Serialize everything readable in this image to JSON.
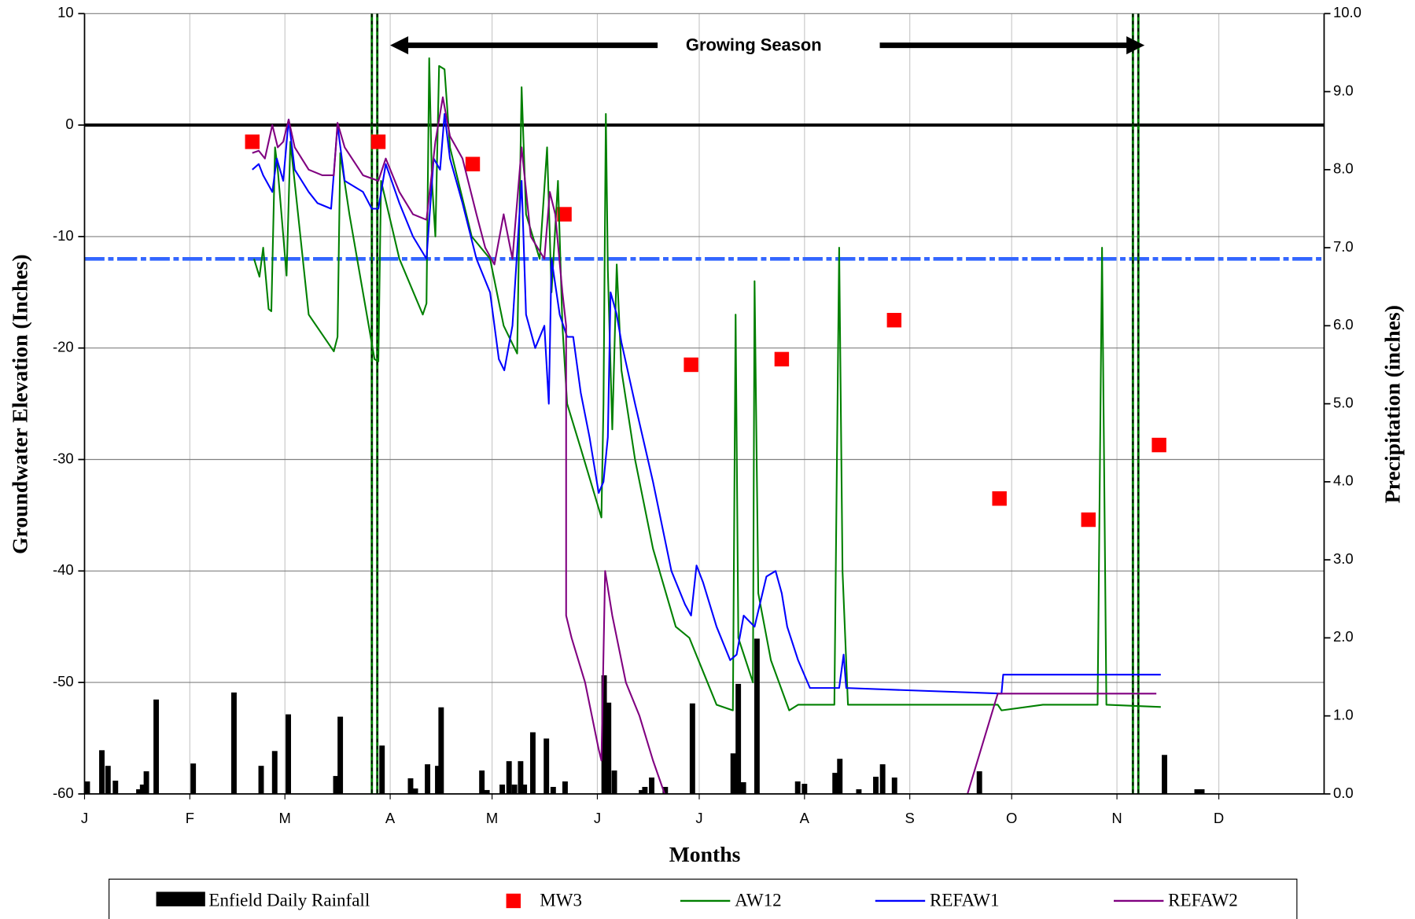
{
  "chart_data": {
    "type": "combo",
    "x_label": "Months",
    "y_label": "Groundwater Elevation (Inches)",
    "y2_label": "Precipitation (inches)",
    "annotation": "Growing Season",
    "xlim": [
      0,
      365
    ],
    "xticks": [
      {
        "value": 0,
        "label": "J"
      },
      {
        "value": 31,
        "label": "F"
      },
      {
        "value": 59,
        "label": "M"
      },
      {
        "value": 90,
        "label": "A"
      },
      {
        "value": 120,
        "label": "M"
      },
      {
        "value": 151,
        "label": "J"
      },
      {
        "value": 181,
        "label": "J"
      },
      {
        "value": 212,
        "label": "A"
      },
      {
        "value": 243,
        "label": "S"
      },
      {
        "value": 273,
        "label": "O"
      },
      {
        "value": 304,
        "label": "N"
      },
      {
        "value": 334,
        "label": "D"
      }
    ],
    "ylim": [
      -60,
      10
    ],
    "yticks": [
      -60,
      -50,
      -40,
      -30,
      -20,
      -10,
      0,
      10
    ],
    "y2lim": [
      0,
      10
    ],
    "y2ticks": [
      {
        "value": 0,
        "label": "0.0"
      },
      {
        "value": 1,
        "label": "1.0"
      },
      {
        "value": 2,
        "label": "2.0"
      },
      {
        "value": 3,
        "label": "3.0"
      },
      {
        "value": 4,
        "label": "4.0"
      },
      {
        "value": 5,
        "label": "5.0"
      },
      {
        "value": 6,
        "label": "6.0"
      },
      {
        "value": 7,
        "label": "7.0"
      },
      {
        "value": 8,
        "label": "8.0"
      },
      {
        "value": 9,
        "label": "9.0"
      },
      {
        "value": 10,
        "label": "10.0"
      }
    ],
    "grid": true,
    "hlines": [
      {
        "value": 0,
        "color": "#000000",
        "dashed": false
      },
      {
        "value": -12,
        "color": "#3366ff",
        "dashed": true
      }
    ],
    "growing_season": [
      85.4,
      309.5
    ],
    "series": [
      {
        "name": "Enfield Daily Rainfall",
        "type": "bar",
        "axis": "y2",
        "color": "#000000",
        "x": [
          0.8,
          5.1,
          6.9,
          9.1,
          16,
          17.1,
          18.2,
          21.1,
          32,
          44,
          52,
          56,
          60,
          74,
          75.3,
          87.6,
          96,
          97.4,
          101,
          104,
          105,
          117,
          118.5,
          123,
          125,
          126.6,
          128.4,
          129.5,
          132,
          136,
          138,
          141.5,
          153,
          154.3,
          156,
          164,
          165,
          167,
          171,
          179,
          191,
          192.5,
          194,
          198,
          210,
          212,
          221,
          222.4,
          228,
          233,
          235,
          238.5,
          263.5,
          318,
          327.6,
          329
        ],
        "values": [
          0.16,
          0.56,
          0.36,
          0.17,
          0.06,
          0.12,
          0.29,
          1.21,
          0.39,
          1.3,
          0.36,
          0.55,
          1.02,
          0.23,
          0.99,
          0.62,
          0.2,
          0.07,
          0.38,
          0.36,
          1.11,
          0.3,
          0.05,
          0.12,
          0.42,
          0.12,
          0.42,
          0.12,
          0.79,
          0.71,
          0.09,
          0.16,
          1.52,
          1.17,
          0.3,
          0.05,
          0.09,
          0.21,
          0.09,
          1.16,
          0.52,
          1.41,
          0.15,
          1.99,
          0.16,
          0.13,
          0.27,
          0.45,
          0.06,
          0.22,
          0.38,
          0.21,
          0.29,
          0.5,
          0.06,
          0.06
        ]
      },
      {
        "name": "MW3",
        "type": "scatter",
        "color": "#ff0000",
        "x": [
          49.4,
          86.5,
          114.3,
          141.3,
          178.6,
          205.3,
          238.4,
          269.4,
          295.6,
          316.4
        ],
        "values": [
          -1.5,
          -1.5,
          -3.5,
          -8,
          -21.5,
          -21,
          -17.5,
          -33.5,
          -35.4,
          -28.7
        ]
      },
      {
        "name": "AW12",
        "type": "line",
        "color": "#008000",
        "x": [
          49.9,
          51.5,
          52.6,
          54.2,
          55.0,
          56.1,
          56.9,
          59.5,
          60.6,
          66.0,
          73.4,
          74.5,
          75.3,
          78.0,
          85.4,
          86.5,
          87.3,
          92.7,
          99.6,
          100.7,
          101.5,
          102.3,
          103.3,
          104.4,
          106.0,
          107.6,
          114.0,
          119.4,
          123.4,
          127.4,
          128.7,
          130.0,
          134.0,
          136.2,
          137.5,
          139.4,
          140.7,
          142.1,
          146.1,
          152.2,
          152.8,
          153.5,
          154.1,
          155.4,
          156.7,
          158.1,
          162.1,
          167.4,
          174.1,
          178.1,
          182.1,
          186.1,
          190.9,
          191.7,
          192.5,
          196.8,
          197.3,
          198.4,
          202.1,
          207.5,
          210.1,
          220.8,
          222.2,
          223.2,
          224.8,
          239.5,
          255.5,
          268.9,
          270.0,
          282.2,
          298.3,
          299.6,
          300.9,
          316.9
        ],
        "values": [
          -12,
          -13.6,
          -11,
          -16.5,
          -16.7,
          -2,
          -4,
          -13.5,
          -1.5,
          -17,
          -20.3,
          -19,
          -2.5,
          -8,
          -21,
          -21.2,
          -5,
          -12,
          -17,
          -16,
          6,
          -5,
          -10,
          5.3,
          5,
          -2,
          -10,
          -12,
          -18,
          -20.5,
          3.4,
          -8,
          -12,
          -2,
          -15,
          -5,
          -18,
          -25,
          -29,
          -35.2,
          -25,
          1,
          -13,
          -27.3,
          -12.5,
          -22,
          -30,
          -38,
          -45,
          -46,
          -49,
          -52,
          -52.5,
          -17,
          -46,
          -50,
          -14,
          -42,
          -48,
          -52.5,
          -52,
          -52,
          -11,
          -40,
          -52,
          -52,
          -52,
          -52,
          -52.5,
          -52,
          -52,
          -11,
          -52,
          -52.2
        ]
      },
      {
        "name": "REFAW1",
        "type": "line",
        "color": "#0000ff",
        "x": [
          49.4,
          51.3,
          52.6,
          55.3,
          56.6,
          58.5,
          60.1,
          61.9,
          66.0,
          68.6,
          72.6,
          74.5,
          76.6,
          82.0,
          84.6,
          86.5,
          88.7,
          92.7,
          96.7,
          100.7,
          102.8,
          104.7,
          106.0,
          107.6,
          111.3,
          115.4,
          119.4,
          122.0,
          123.6,
          126.0,
          128.7,
          130.0,
          132.7,
          135.4,
          136.7,
          137.5,
          139.9,
          142.1,
          143.9,
          146.1,
          148.7,
          151.4,
          152.8,
          154.1,
          154.9,
          156.7,
          158.1,
          162.1,
          167.4,
          172.8,
          176.8,
          178.6,
          180.2,
          182.1,
          186.1,
          190.1,
          192.0,
          194.1,
          197.3,
          200.8,
          203.5,
          205.3,
          206.9,
          210.1,
          213.6,
          222.2,
          223.5,
          224.3,
          242.2,
          270.0,
          270.5,
          295.6,
          316.9
        ],
        "values": [
          -4,
          -3.5,
          -4.5,
          -6,
          -3,
          -5,
          0.5,
          -4,
          -6,
          -7,
          -7.5,
          0,
          -5,
          -6,
          -7.5,
          -7.5,
          -3.5,
          -7,
          -10,
          -12,
          -3,
          -4,
          1,
          -3,
          -7,
          -12,
          -15,
          -21,
          -22,
          -18,
          -5,
          -17,
          -20,
          -18,
          -25,
          -12,
          -17,
          -19,
          -19,
          -24,
          -28,
          -33,
          -32,
          -28,
          -15,
          -17,
          -19.5,
          -25,
          -32,
          -40,
          -43,
          -44,
          -39.5,
          -41,
          -45,
          -48,
          -47.5,
          -44,
          -45,
          -40.5,
          -40,
          -42,
          -45,
          -48,
          -50.5,
          -50.5,
          -47.5,
          -50.5,
          -50.7,
          -51,
          -49.3,
          -49.3,
          -49.3
        ]
      },
      {
        "name": "REFAW2",
        "type": "line",
        "color": "#800080",
        "x": [
          49.4,
          51.3,
          53.1,
          55.3,
          56.9,
          58.5,
          60.1,
          61.9,
          66.0,
          70.0,
          73.4,
          74.5,
          76.6,
          82.0,
          86.5,
          88.7,
          92.7,
          96.7,
          100.7,
          103.3,
          105.5,
          107.6,
          111.3,
          115.4,
          118.0,
          120.7,
          123.4,
          126.0,
          128.7,
          131.4,
          135.4,
          137.0,
          138.6,
          140.7,
          141.8,
          141.8,
          143.4,
          147.4,
          151.4,
          152.2,
          153.3,
          155.4,
          159.4,
          163.4,
          167.4,
          171.4,
          null,
          259.5,
          268.9,
          315.6
        ],
        "values": [
          -2.5,
          -2.3,
          -3,
          0,
          -2,
          -1.5,
          0.5,
          -2,
          -4,
          -4.5,
          -4.5,
          0.2,
          -2,
          -4.5,
          -5,
          -3,
          -6,
          -8,
          -8.5,
          -1.5,
          2.5,
          -1,
          -3,
          -8,
          -11,
          -12.5,
          -8,
          -12,
          -2,
          -10,
          -12,
          -6,
          -8,
          -15,
          -18,
          -44,
          -46,
          -50,
          -56,
          -57,
          -40,
          -44,
          -50,
          -53,
          -57,
          -60.5,
          null,
          -60.5,
          -51,
          -51
        ]
      }
    ]
  }
}
